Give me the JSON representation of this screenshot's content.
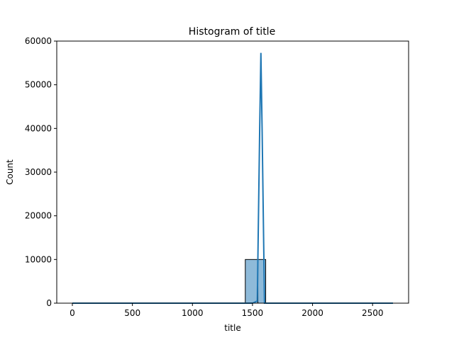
{
  "chart_data": {
    "type": "bar",
    "title": "Histogram of title",
    "xlabel": "title",
    "ylabel": "Count",
    "xlim": [
      -130,
      2800
    ],
    "ylim": [
      0,
      60000
    ],
    "xticks": [
      0,
      500,
      1000,
      2000,
      2500
    ],
    "xtick_labels": [
      "0",
      "500",
      "1000",
      "2000",
      "2500"
    ],
    "xticks_extra": [
      {
        "value": 1500,
        "label": "1500"
      }
    ],
    "yticks": [
      0,
      10000,
      20000,
      30000,
      40000,
      50000,
      60000
    ],
    "ytick_labels": [
      "0",
      "10000",
      "20000",
      "30000",
      "40000",
      "50000",
      "60000"
    ],
    "bins": [
      {
        "x0": 0,
        "x1": 1440,
        "count": 0
      },
      {
        "x0": 1440,
        "x1": 1545,
        "count": 10000
      },
      {
        "x0": 1545,
        "x1": 1610,
        "count": 10000
      },
      {
        "x0": 1610,
        "x1": 2670,
        "count": 0
      }
    ],
    "kde": {
      "x": [
        0,
        500,
        1000,
        1400,
        1500,
        1540,
        1560,
        1570,
        1580,
        1600,
        1640,
        1700,
        2000,
        2670
      ],
      "y": [
        0,
        0,
        0,
        0,
        0,
        500,
        40000,
        57300,
        40000,
        0,
        0,
        0,
        0,
        0
      ]
    },
    "grid": false,
    "colors": {
      "bar_fill": "#8ebad9",
      "bar_edge": "#000000",
      "kde_line": "#1f77b4"
    }
  }
}
